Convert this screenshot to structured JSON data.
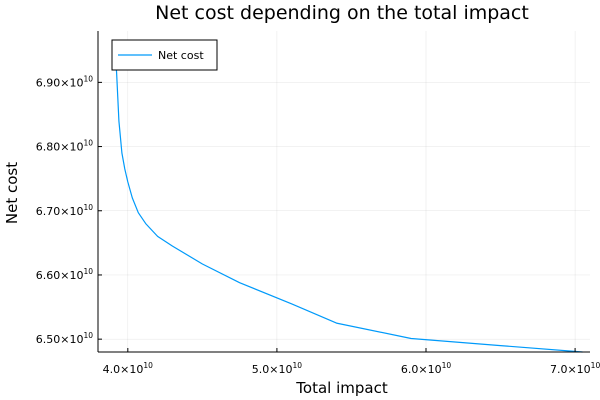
{
  "chart_data": {
    "type": "line",
    "title": "Net cost depending on the total impact",
    "xlabel": "Total impact",
    "ylabel": "Net cost",
    "xlim": [
      38000000000,
      71000000000
    ],
    "ylim": [
      64800000000,
      69800000000
    ],
    "x_ticks": [
      {
        "value": 40000000000,
        "mantissa": "4.0×10",
        "exponent": "10"
      },
      {
        "value": 50000000000,
        "mantissa": "5.0×10",
        "exponent": "10"
      },
      {
        "value": 60000000000,
        "mantissa": "6.0×10",
        "exponent": "10"
      },
      {
        "value": 70000000000,
        "mantissa": "7.0×10",
        "exponent": "10"
      }
    ],
    "y_ticks": [
      {
        "value": 65000000000,
        "mantissa": "6.50×10",
        "exponent": "10"
      },
      {
        "value": 66000000000,
        "mantissa": "6.60×10",
        "exponent": "10"
      },
      {
        "value": 67000000000,
        "mantissa": "6.70×10",
        "exponent": "10"
      },
      {
        "value": 68000000000,
        "mantissa": "6.80×10",
        "exponent": "10"
      },
      {
        "value": 69000000000,
        "mantissa": "6.90×10",
        "exponent": "10"
      }
    ],
    "grid": true,
    "legend_position": "top-left",
    "series": [
      {
        "name": "Net cost",
        "color": "#009AFA",
        "x": [
          39100000000,
          39250000000,
          39400000000,
          39600000000,
          39800000000,
          40000000000,
          40300000000,
          40700000000,
          41200000000,
          42000000000,
          43000000000,
          45000000000,
          47500000000,
          51000000000,
          54000000000,
          59000000000,
          65000000000,
          70500000000
        ],
        "y": [
          69630000000,
          69150000000,
          68400000000,
          67900000000,
          67650000000,
          67450000000,
          67200000000,
          66970000000,
          66800000000,
          66600000000,
          66450000000,
          66170000000,
          65880000000,
          65550000000,
          65250000000,
          65010000000,
          64900000000,
          64800000000
        ]
      }
    ]
  }
}
